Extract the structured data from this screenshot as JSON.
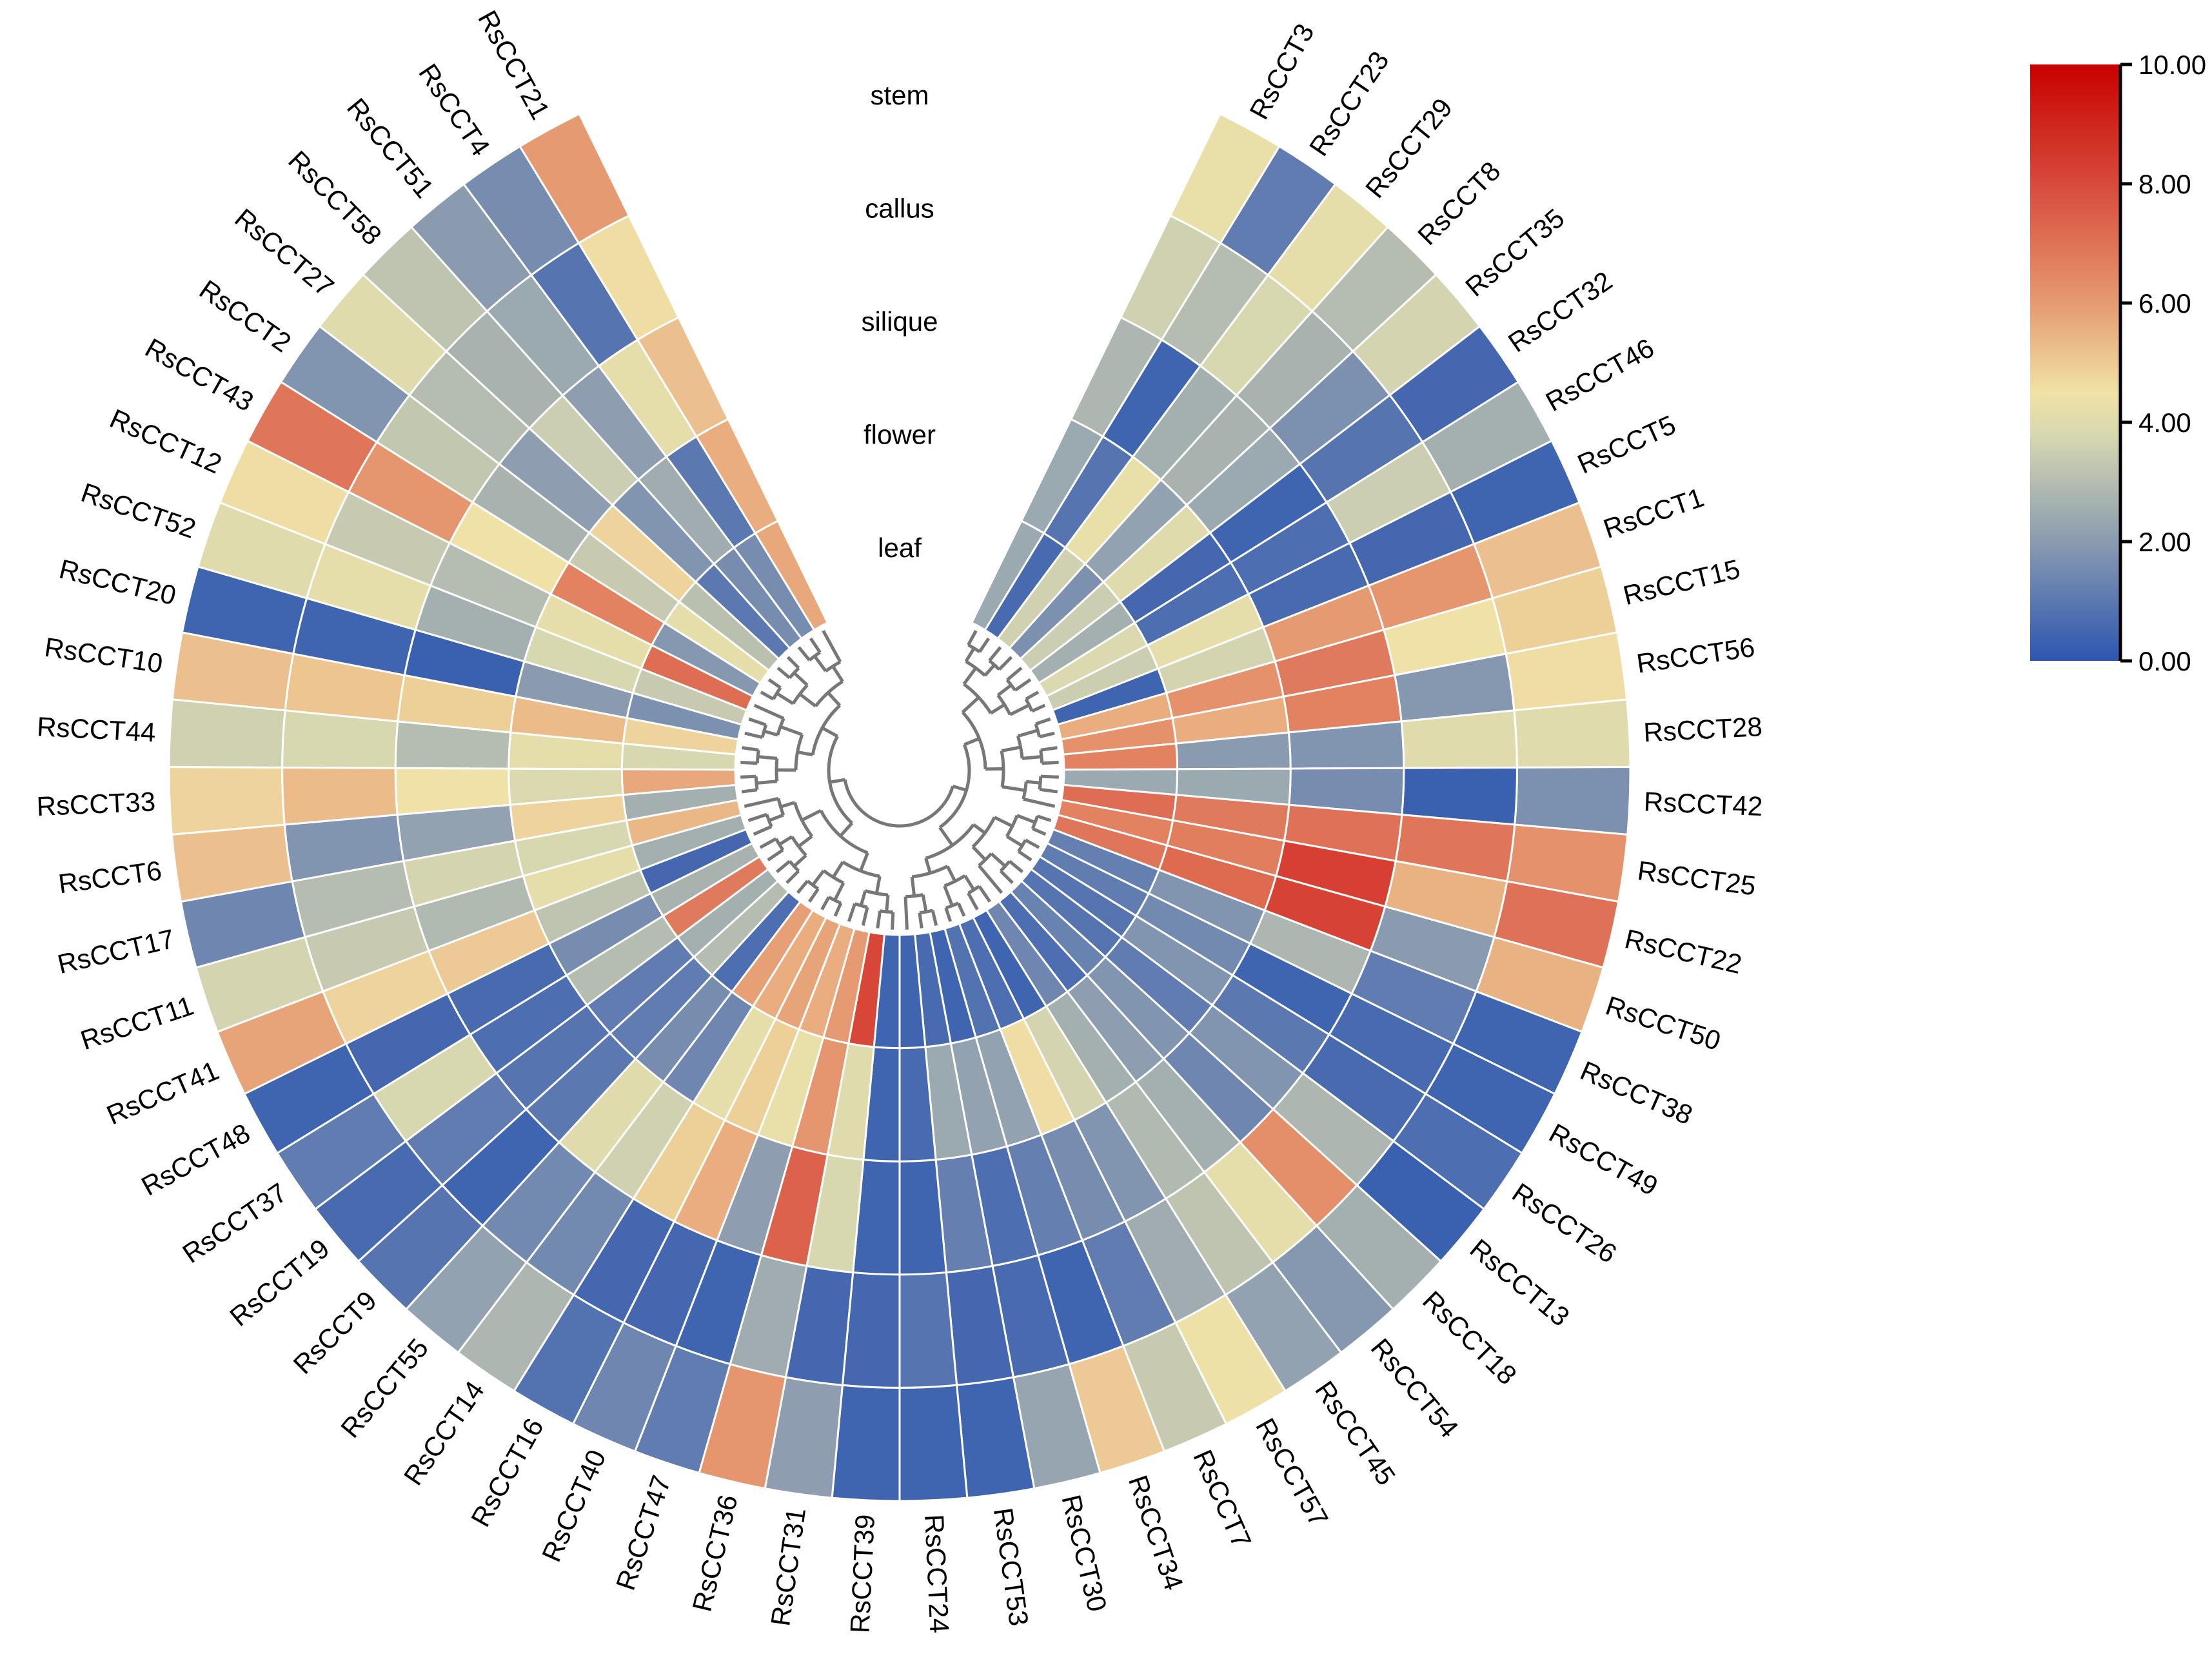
{
  "chart_data": {
    "type": "heatmap",
    "layout": "circular",
    "title": "",
    "rings": [
      "stem",
      "callus",
      "silique",
      "flower",
      "leaf"
    ],
    "colorbar": {
      "min": 0,
      "max": 10,
      "ticks": [
        "0.00",
        "2.00",
        "4.00",
        "6.00",
        "8.00",
        "10.00"
      ],
      "tick_values": [
        0,
        2,
        4,
        6,
        8,
        10
      ],
      "stops": [
        {
          "value": 0,
          "color": "#2c56b0"
        },
        {
          "value": 2,
          "color": "#8a9bb0"
        },
        {
          "value": 3.8,
          "color": "#d8d8b0"
        },
        {
          "value": 4.5,
          "color": "#f0e2a6"
        },
        {
          "value": 6,
          "color": "#e69a72"
        },
        {
          "value": 8,
          "color": "#d84a3a"
        },
        {
          "value": 10,
          "color": "#c80000"
        }
      ]
    },
    "genes": [
      {
        "name": "RsCCT3",
        "values": [
          4.3,
          3.6,
          2.8,
          2.4,
          2.4
        ]
      },
      {
        "name": "RsCCT23",
        "values": [
          1.1,
          3.0,
          0.4,
          0.9,
          0.6
        ]
      },
      {
        "name": "RsCCT29",
        "values": [
          4.2,
          3.8,
          2.6,
          4.3,
          3.6
        ]
      },
      {
        "name": "RsCCT8",
        "values": [
          3.0,
          2.7,
          2.7,
          2.2,
          1.7
        ]
      },
      {
        "name": "RsCCT35",
        "values": [
          3.7,
          1.7,
          2.4,
          4.0,
          3.5
        ]
      },
      {
        "name": "RsCCT32",
        "values": [
          0.5,
          0.9,
          0.4,
          0.5,
          2.6
        ]
      },
      {
        "name": "RsCCT46",
        "values": [
          2.6,
          3.5,
          0.7,
          0.7,
          3.9
        ]
      },
      {
        "name": "RsCCT5",
        "values": [
          0.4,
          0.5,
          0.6,
          4.2,
          3.5
        ]
      },
      {
        "name": "RsCCT1",
        "values": [
          5.2,
          6.1,
          6.0,
          3.7,
          0.4
        ]
      },
      {
        "name": "RsCCT15",
        "values": [
          4.9,
          4.5,
          6.8,
          6.2,
          5.6
        ]
      },
      {
        "name": "RsCCT56",
        "values": [
          4.6,
          1.9,
          6.6,
          5.6,
          6.2
        ]
      },
      {
        "name": "RsCCT28",
        "values": [
          4.0,
          4.0,
          1.8,
          2.0,
          6.6
        ]
      },
      {
        "name": "RsCCT42",
        "values": [
          1.7,
          0.3,
          1.6,
          2.4,
          2.4
        ]
      },
      {
        "name": "RsCCT25",
        "values": [
          6.2,
          6.9,
          7.0,
          6.8,
          7.1
        ]
      },
      {
        "name": "RsCCT22",
        "values": [
          7.0,
          5.5,
          8.3,
          6.7,
          6.6
        ]
      },
      {
        "name": "RsCCT50",
        "values": [
          5.5,
          2.0,
          8.2,
          7.2,
          6.9
        ]
      },
      {
        "name": "RsCCT38",
        "values": [
          0.4,
          1.1,
          2.8,
          1.8,
          1.2
        ]
      },
      {
        "name": "RsCCT49",
        "values": [
          0.4,
          0.6,
          0.4,
          1.5,
          1.1
        ]
      },
      {
        "name": "RsCCT26",
        "values": [
          0.7,
          0.6,
          1.0,
          1.8,
          0.9
        ]
      },
      {
        "name": "RsCCT13",
        "values": [
          0.3,
          2.8,
          1.8,
          1.1,
          0.9
        ]
      },
      {
        "name": "RsCCT18",
        "values": [
          2.6,
          6.3,
          1.4,
          1.8,
          1.3
        ]
      },
      {
        "name": "RsCCT54",
        "values": [
          1.9,
          4.2,
          2.6,
          2.1,
          0.7
        ]
      },
      {
        "name": "RsCCT45",
        "values": [
          2.2,
          3.2,
          2.9,
          2.6,
          1.4
        ]
      },
      {
        "name": "RsCCT57",
        "values": [
          4.4,
          2.5,
          1.8,
          3.7,
          0.4
        ]
      },
      {
        "name": "RsCCT7",
        "values": [
          3.4,
          1.1,
          1.6,
          4.6,
          0.7
        ]
      },
      {
        "name": "RsCCT34",
        "values": [
          5.0,
          0.4,
          1.2,
          2.2,
          0.8
        ]
      },
      {
        "name": "RsCCT30",
        "values": [
          2.3,
          0.6,
          0.7,
          2.2,
          0.4
        ]
      },
      {
        "name": "RsCCT53",
        "values": [
          0.4,
          0.5,
          1.2,
          2.4,
          0.6
        ]
      },
      {
        "name": "RsCCT24",
        "values": [
          0.4,
          0.9,
          0.4,
          0.6,
          0.4
        ]
      },
      {
        "name": "RsCCT39",
        "values": [
          0.4,
          0.5,
          0.4,
          0.4,
          0.4
        ]
      },
      {
        "name": "RsCCT31",
        "values": [
          2.1,
          0.5,
          3.8,
          4.0,
          8.1
        ]
      },
      {
        "name": "RsCCT36",
        "values": [
          6.1,
          2.5,
          7.4,
          6.1,
          6.0
        ]
      },
      {
        "name": "RsCCT47",
        "values": [
          1.1,
          0.4,
          2.1,
          4.3,
          5.6
        ]
      },
      {
        "name": "RsCCT40",
        "values": [
          1.4,
          0.5,
          5.6,
          4.9,
          5.8
        ]
      },
      {
        "name": "RsCCT16",
        "values": [
          0.8,
          0.5,
          4.9,
          4.2,
          5.6
        ]
      },
      {
        "name": "RsCCT14",
        "values": [
          2.8,
          1.5,
          3.6,
          1.4,
          5.9
        ]
      },
      {
        "name": "RsCCT55",
        "values": [
          2.2,
          1.5,
          4.0,
          1.6,
          0.7
        ]
      },
      {
        "name": "RsCCT9",
        "values": [
          0.9,
          0.4,
          1.0,
          1.1,
          3.0
        ]
      },
      {
        "name": "RsCCT19",
        "values": [
          0.6,
          1.1,
          0.9,
          1.1,
          2.6
        ]
      },
      {
        "name": "RsCCT37",
        "values": [
          1.1,
          3.8,
          0.7,
          3.0,
          6.8
        ]
      },
      {
        "name": "RsCCT48",
        "values": [
          0.4,
          0.5,
          0.6,
          1.6,
          2.7
        ]
      },
      {
        "name": "RsCCT41",
        "values": [
          5.8,
          4.8,
          5.0,
          3.2,
          0.5
        ]
      },
      {
        "name": "RsCCT11",
        "values": [
          3.7,
          3.4,
          2.9,
          4.2,
          2.6
        ]
      },
      {
        "name": "RsCCT17",
        "values": [
          1.4,
          3.0,
          3.7,
          3.8,
          5.4
        ]
      },
      {
        "name": "RsCCT6",
        "values": [
          5.2,
          1.8,
          2.2,
          4.8,
          2.6
        ]
      },
      {
        "name": "RsCCT33",
        "values": [
          4.8,
          5.3,
          4.5,
          3.9,
          5.7
        ]
      },
      {
        "name": "RsCCT44",
        "values": [
          3.6,
          3.8,
          3.0,
          4.2,
          3.8
        ]
      },
      {
        "name": "RsCCT10",
        "values": [
          5.2,
          5.1,
          4.9,
          5.3,
          4.8
        ]
      },
      {
        "name": "RsCCT20",
        "values": [
          0.4,
          0.4,
          0.3,
          2.0,
          1.7
        ]
      },
      {
        "name": "RsCCT52",
        "values": [
          4.0,
          4.2,
          2.6,
          3.8,
          3.4
        ]
      },
      {
        "name": "RsCCT12",
        "values": [
          4.6,
          3.4,
          3.0,
          4.2,
          7.1
        ]
      },
      {
        "name": "RsCCT43",
        "values": [
          6.9,
          6.1,
          4.5,
          6.6,
          1.9
        ]
      },
      {
        "name": "RsCCT2",
        "values": [
          1.8,
          3.3,
          2.7,
          3.4,
          4.2
        ]
      },
      {
        "name": "RsCCT27",
        "values": [
          4.0,
          3.0,
          2.1,
          4.8,
          3.1
        ]
      },
      {
        "name": "RsCCT58",
        "values": [
          3.2,
          2.7,
          3.5,
          1.8,
          1.0
        ]
      },
      {
        "name": "RsCCT51",
        "values": [
          2.0,
          2.4,
          2.1,
          2.5,
          1.6
        ]
      },
      {
        "name": "RsCCT4",
        "values": [
          1.6,
          0.9,
          4.2,
          1.0,
          1.6
        ]
      },
      {
        "name": "RsCCT21",
        "values": [
          6.0,
          4.6,
          5.2,
          5.6,
          5.7
        ]
      }
    ]
  }
}
